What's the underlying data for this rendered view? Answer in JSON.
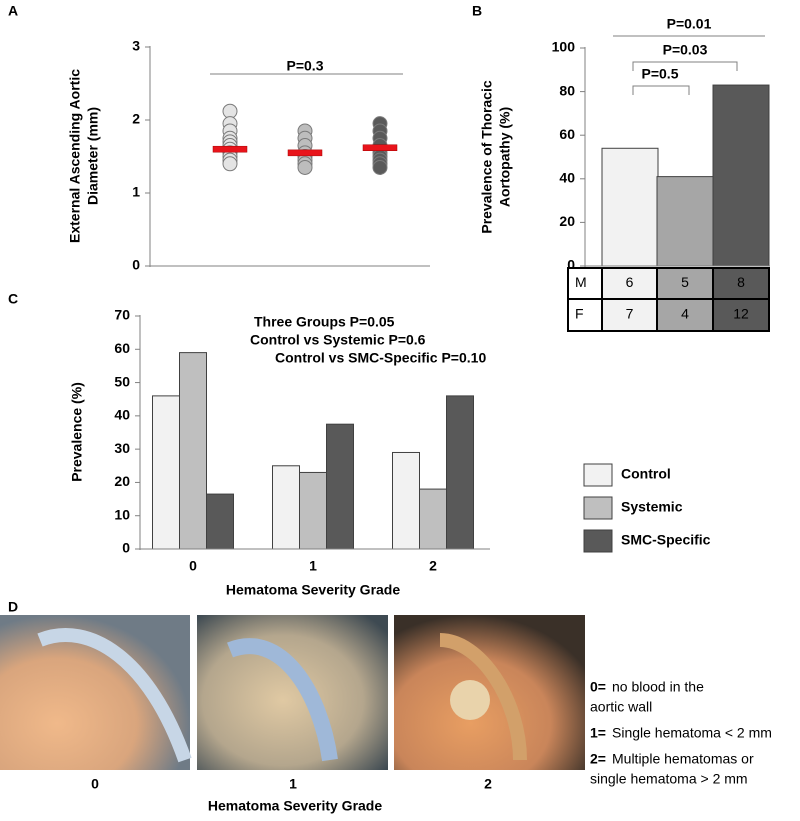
{
  "figure": {
    "panel_labels": [
      "A",
      "B",
      "C",
      "D"
    ],
    "photo_grades": [
      "0",
      "1",
      "2"
    ],
    "photo_axis_label": "Hematoma Severity Grade",
    "grade_key": [
      {
        "key": "0=",
        "lines": [
          "no blood in the",
          "aortic wall"
        ]
      },
      {
        "key": "1=",
        "lines": [
          "Single hematoma  < 2 mm"
        ]
      },
      {
        "key": "2=",
        "lines": [
          "Multiple hematomas or",
          "single hematoma > 2 mm"
        ]
      }
    ]
  },
  "chart_data": [
    {
      "type": "dot",
      "categories": [
        null,
        null,
        null
      ],
      "ylabel": [
        "External Ascending Aortic",
        "Diameter (mm)"
      ],
      "ylim": [
        0,
        3
      ],
      "yticks": [
        0,
        1,
        2,
        3
      ],
      "mean_color": "#e8141b",
      "annotations": [
        "P=0.3"
      ],
      "groups": [
        {
          "color": "#e4e4e4",
          "values": [
            2.12,
            1.95,
            1.85,
            1.75,
            1.7,
            1.65,
            1.6,
            1.55,
            1.5,
            1.45,
            1.4
          ],
          "mean": 1.6
        },
        {
          "color": "#bdbdbd",
          "values": [
            1.85,
            1.75,
            1.65,
            1.55,
            1.5,
            1.45,
            1.4,
            1.35
          ],
          "mean": 1.55
        },
        {
          "color": "#5a5a5a",
          "values": [
            1.95,
            1.85,
            1.75,
            1.65,
            1.55,
            1.5,
            1.45,
            1.4,
            1.35
          ],
          "mean": 1.62
        }
      ]
    },
    {
      "type": "bar",
      "categories": [
        null,
        null,
        null
      ],
      "ylabel": [
        "Prevalence of Thoracic",
        "Aortopathy (%)"
      ],
      "ylim": [
        0,
        100
      ],
      "yticks": [
        0,
        20,
        40,
        60,
        80,
        100
      ],
      "values": [
        54,
        41,
        83
      ],
      "colors": [
        "#f2f2f2",
        "#a6a6a6",
        "#595959"
      ],
      "annotations": [
        "P=0.5",
        "P=0.03",
        "P=0.01"
      ],
      "table": [
        {
          "label": "M",
          "values": [
            6,
            5,
            8
          ]
        },
        {
          "label": "F",
          "values": [
            7,
            4,
            12
          ]
        }
      ]
    },
    {
      "type": "grouped-bar",
      "categories": [
        "0",
        "1",
        "2"
      ],
      "xlabel": "Hematoma Severity Grade",
      "ylabel": "Prevalence (%)",
      "ylim": [
        0,
        70
      ],
      "yticks": [
        0,
        10,
        20,
        30,
        40,
        50,
        60,
        70
      ],
      "annotations": [
        "Three Groups P=0.05",
        "Control vs Systemic P=0.6",
        "Control vs SMC-Specific P=0.10"
      ],
      "series": [
        {
          "name": "Control",
          "color": "#f2f2f2",
          "values": [
            46,
            25,
            29
          ]
        },
        {
          "name": "Systemic",
          "color": "#bfbfbf",
          "values": [
            59,
            23,
            18
          ]
        },
        {
          "name": "SMC-Specific",
          "color": "#595959",
          "values": [
            16.5,
            37.5,
            46
          ]
        }
      ]
    }
  ]
}
